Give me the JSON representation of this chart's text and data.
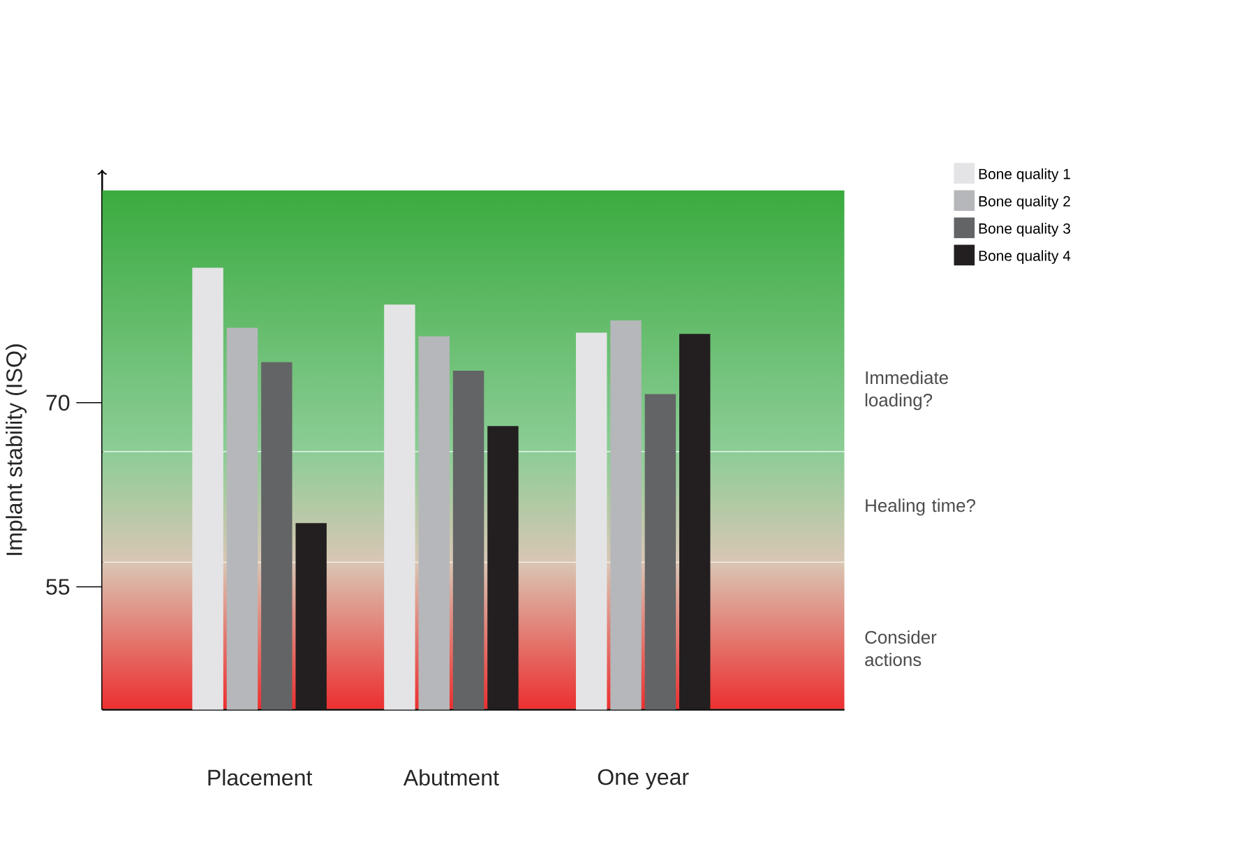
{
  "chart_data": {
    "type": "bar",
    "ylabel": "Implant stability (ISQ)",
    "categories": [
      "Placement",
      "Abutment",
      "One year"
    ],
    "series": [
      {
        "name": "Bone quality 1",
        "color": "#e4e4e6",
        "values": [
          81.0,
          78.0,
          75.7
        ]
      },
      {
        "name": "Bone quality 2",
        "color": "#b6b7ba",
        "values": [
          76.1,
          75.4,
          76.7
        ]
      },
      {
        "name": "Bone quality 3",
        "color": "#636466",
        "values": [
          73.3,
          72.6,
          70.7
        ]
      },
      {
        "name": "Bone quality 4",
        "color": "#231f20",
        "values": [
          60.2,
          68.1,
          75.6
        ]
      }
    ],
    "ylim": [
      45,
      87.3
    ],
    "yticks": [
      70,
      55
    ],
    "bands": [
      {
        "axis": "y",
        "from": 45,
        "to": 57,
        "label": "Consider actions",
        "color": "#ec2f2f"
      },
      {
        "axis": "y",
        "from": 57,
        "to": 66,
        "label": "Healing time?",
        "color": "#d9c6b4"
      },
      {
        "axis": "y",
        "from": 66,
        "to": 87.3,
        "label": "Immediate loading?",
        "color": "#8ccd96"
      }
    ],
    "legend": "top right",
    "grid": false
  }
}
